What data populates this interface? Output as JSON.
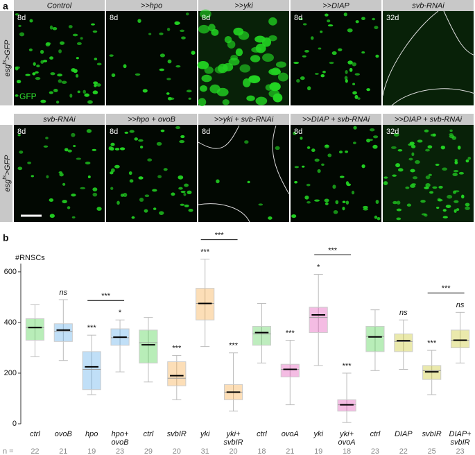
{
  "panel_a": {
    "label": "a",
    "row_label": {
      "pre": "esg",
      "sup": "ts",
      "post": ">GFP"
    },
    "channel": "GFP",
    "rows": [
      [
        {
          "title": "Control",
          "age": "8d"
        },
        {
          "title": ">>hpo",
          "age": "8d"
        },
        {
          "title": ">>yki",
          "age": "8d"
        },
        {
          "title": ">>DIAP",
          "age": "8d"
        },
        {
          "title": "svb-RNAi",
          "age": "32d"
        }
      ],
      [
        {
          "title": "svb-RNAi",
          "age": "8d"
        },
        {
          "title": ">>hpo + ovoB",
          "age": "8d"
        },
        {
          "title": ">>yki + svb-RNAi",
          "age": "8d"
        },
        {
          "title": ">>DIAP + svb-RNAi",
          "age": "8d"
        },
        {
          "title": ">>DIAP + svb-RNAi",
          "age": "32d"
        }
      ]
    ]
  },
  "chart_data": {
    "type": "box",
    "label": "b",
    "ylabel": "#RNSCs",
    "ylim": [
      0,
      660
    ],
    "yticks": [
      0,
      200,
      400,
      600
    ],
    "categories": [
      [
        "ctrl"
      ],
      [
        "ovoB"
      ],
      [
        "hpo"
      ],
      [
        "hpo+",
        "ovoB"
      ],
      [
        "ctrl"
      ],
      [
        "svbIR"
      ],
      [
        "yki"
      ],
      [
        "yki+",
        "svbIR"
      ],
      [
        "ctrl"
      ],
      [
        "ovoA"
      ],
      [
        "yki"
      ],
      [
        "yki+",
        "ovoA"
      ],
      [
        "ctrl"
      ],
      [
        "DIAP"
      ],
      [
        "svbIR"
      ],
      [
        "DIAP+",
        "svbIR"
      ]
    ],
    "colors": [
      "#33cc33",
      "#4aa3e8",
      "#4aa3e8",
      "#4aa3e8",
      "#33cc33",
      "#f5a030",
      "#f5a030",
      "#f5a030",
      "#44cc44",
      "#e040b0",
      "#e040b0",
      "#e040b0",
      "#33cc33",
      "#c4c010",
      "#c4c010",
      "#c4c010"
    ],
    "stats": [
      {
        "min": 265,
        "q1": 330,
        "median": 380,
        "q3": 415,
        "max": 470,
        "mean": 380
      },
      {
        "min": 250,
        "q1": 325,
        "median": 365,
        "q3": 395,
        "max": 490,
        "mean": 370
      },
      {
        "min": 115,
        "q1": 135,
        "median": 215,
        "q3": 285,
        "max": 350,
        "mean": 225
      },
      {
        "min": 205,
        "q1": 310,
        "median": 340,
        "q3": 375,
        "max": 410,
        "mean": 342
      },
      {
        "min": 165,
        "q1": 240,
        "median": 320,
        "q3": 370,
        "max": 420,
        "mean": 312
      },
      {
        "min": 95,
        "q1": 150,
        "median": 180,
        "q3": 245,
        "max": 270,
        "mean": 190
      },
      {
        "min": 305,
        "q1": 410,
        "median": 475,
        "q3": 535,
        "max": 650,
        "mean": 475
      },
      {
        "min": 50,
        "q1": 95,
        "median": 125,
        "q3": 155,
        "max": 280,
        "mean": 125
      },
      {
        "min": 240,
        "q1": 310,
        "median": 355,
        "q3": 385,
        "max": 475,
        "mean": 360
      },
      {
        "min": 75,
        "q1": 185,
        "median": 215,
        "q3": 235,
        "max": 330,
        "mean": 215
      },
      {
        "min": 230,
        "q1": 360,
        "median": 420,
        "q3": 460,
        "max": 590,
        "mean": 430
      },
      {
        "min": 5,
        "q1": 50,
        "median": 75,
        "q3": 95,
        "max": 200,
        "mean": 75
      },
      {
        "min": 210,
        "q1": 285,
        "median": 345,
        "q3": 385,
        "max": 450,
        "mean": 343
      },
      {
        "min": 215,
        "q1": 285,
        "median": 325,
        "q3": 355,
        "max": 410,
        "mean": 328
      },
      {
        "min": 115,
        "q1": 175,
        "median": 210,
        "q3": 230,
        "max": 290,
        "mean": 205
      },
      {
        "min": 240,
        "q1": 300,
        "median": 330,
        "q3": 370,
        "max": 440,
        "mean": 330
      }
    ],
    "significance": [
      null,
      "ns",
      "***",
      "*",
      null,
      "***",
      "***",
      "***",
      null,
      "***",
      "*",
      "***",
      null,
      "ns",
      "***",
      "ns"
    ],
    "brackets": [
      {
        "categories": [
          2,
          3
        ],
        "label": "***"
      },
      {
        "categories": [
          6,
          7
        ],
        "label": "***"
      },
      {
        "categories": [
          10,
          11
        ],
        "label": "***"
      },
      {
        "categories": [
          14,
          15
        ],
        "label": "***"
      }
    ],
    "n_label": "n =",
    "n": [
      22,
      21,
      19,
      23,
      29,
      20,
      31,
      20,
      18,
      21,
      19,
      18,
      23,
      22,
      25,
      23
    ]
  }
}
